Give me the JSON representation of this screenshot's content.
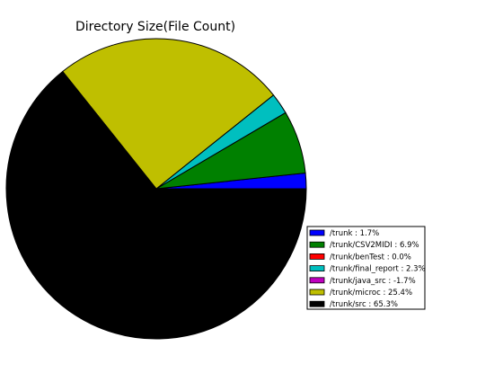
{
  "chart_data": {
    "type": "pie",
    "title": "Directory Size(File Count)",
    "legend_position": "right",
    "slices": [
      {
        "label": "/trunk : 1.7%",
        "value": 1.7,
        "color": "#0000ff"
      },
      {
        "label": "/trunk/CSV2MIDI : 6.9%",
        "value": 6.9,
        "color": "#008000"
      },
      {
        "label": "/trunk/benTest : 0.0%",
        "value": 0.0,
        "color": "#ff0000"
      },
      {
        "label": "/trunk/final_report : 2.3%",
        "value": 2.3,
        "color": "#00bfbf"
      },
      {
        "label": "/trunk/java_src : -1.7%",
        "value": -1.7,
        "color": "#bf00bf"
      },
      {
        "label": "/trunk/microc : 25.4%",
        "value": 25.4,
        "color": "#bfbf00"
      },
      {
        "label": "/trunk/src : 65.3%",
        "value": 65.3,
        "color": "#000000"
      }
    ]
  }
}
